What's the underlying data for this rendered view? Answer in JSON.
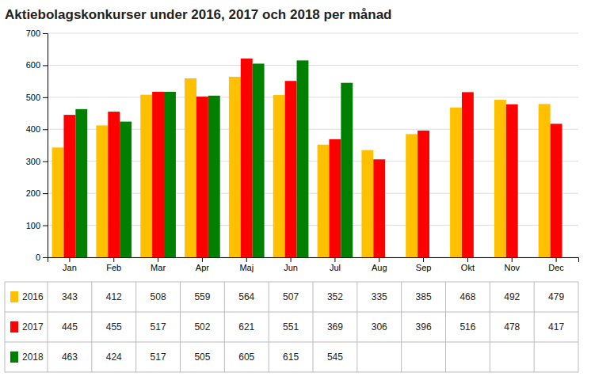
{
  "chart_data": {
    "type": "bar",
    "title": "Aktiebolagskonkurser under 2016, 2017 och 2018 per månad",
    "categories": [
      "Jan",
      "Feb",
      "Mar",
      "Apr",
      "Maj",
      "Jun",
      "Jul",
      "Aug",
      "Sep",
      "Okt",
      "Nov",
      "Dec"
    ],
    "series": [
      {
        "name": "2016",
        "color": "#FFC000",
        "values": [
          343,
          412,
          508,
          559,
          564,
          507,
          352,
          335,
          385,
          468,
          492,
          479
        ]
      },
      {
        "name": "2017",
        "color": "#FF0000",
        "values": [
          445,
          455,
          517,
          502,
          621,
          551,
          369,
          306,
          396,
          516,
          478,
          417
        ]
      },
      {
        "name": "2018",
        "color": "#008000",
        "values": [
          463,
          424,
          517,
          505,
          605,
          615,
          545,
          null,
          null,
          null,
          null,
          null
        ]
      }
    ],
    "ylim": [
      0,
      700
    ],
    "yticks": [
      0,
      100,
      200,
      300,
      400,
      500,
      600,
      700
    ],
    "grid": true,
    "legend": "bottom"
  }
}
